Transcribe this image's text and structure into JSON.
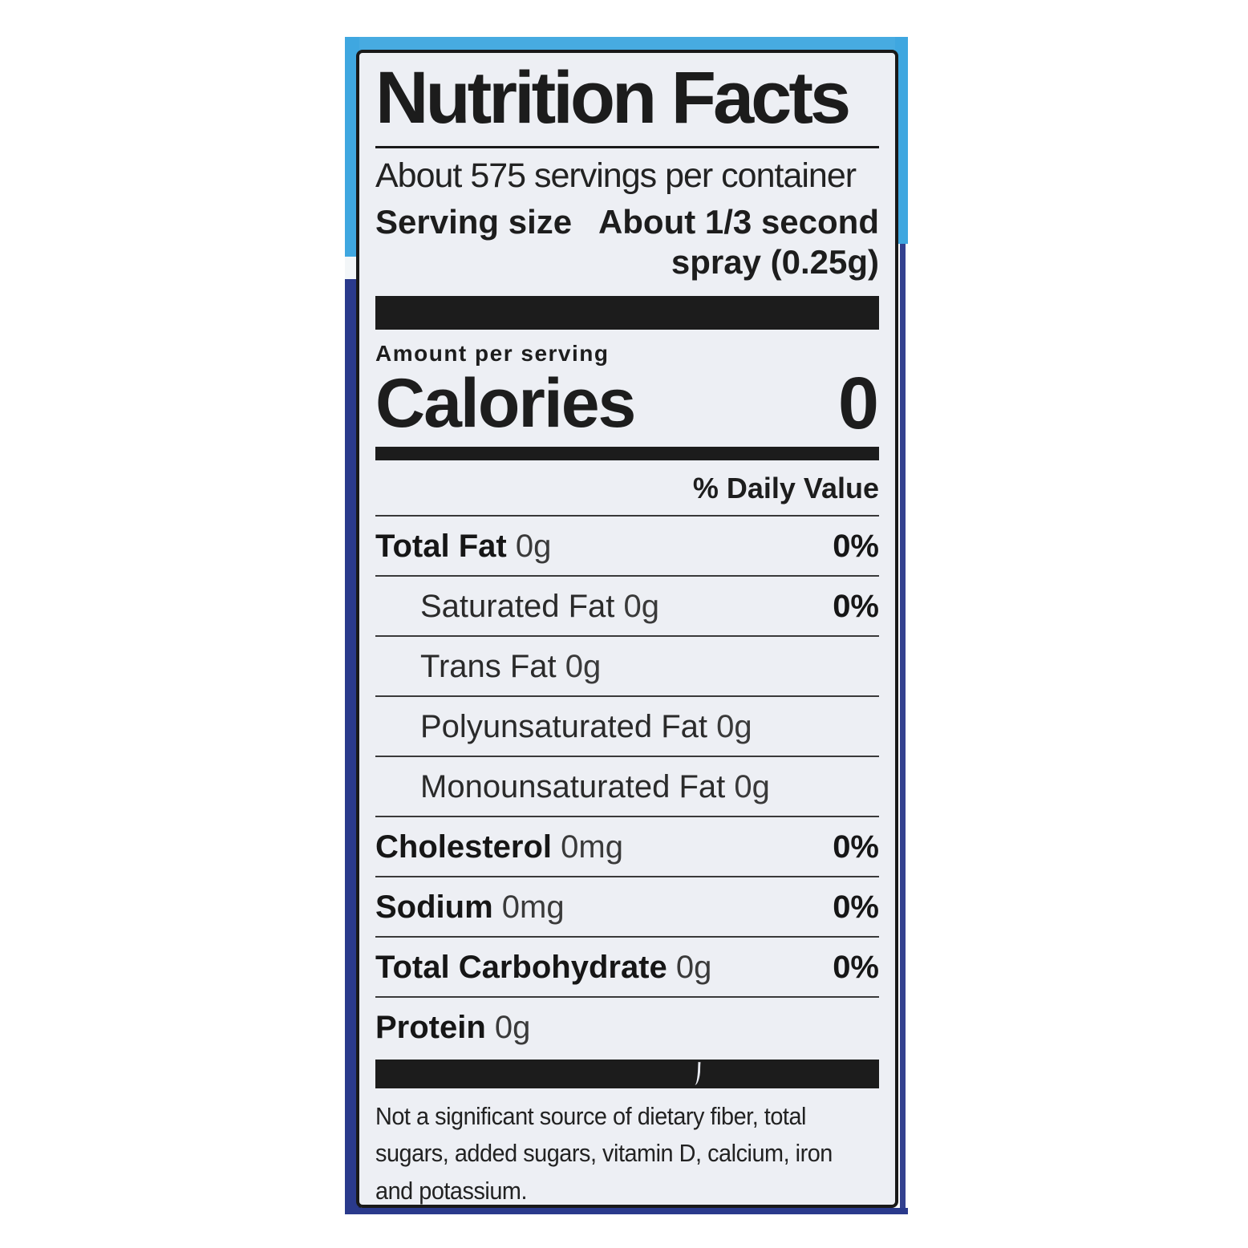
{
  "label": {
    "title": "Nutrition Facts",
    "servings_per_container": "About 575 servings per container",
    "serving_size_label": "Serving size",
    "serving_size_value_line1": "About 1/3 second",
    "serving_size_value_line2": "spray (0.25g)",
    "amount_per_serving": "Amount per serving",
    "calories_label": "Calories",
    "calories_value": "0",
    "daily_value_header": "% Daily Value",
    "rows": [
      {
        "name": "Total Fat",
        "amount": "0g",
        "dv": "0%"
      },
      {
        "name": "Saturated Fat",
        "amount": "0g",
        "dv": "0%"
      },
      {
        "name": "Trans Fat",
        "amount": "0g",
        "dv": ""
      },
      {
        "name": "Polyunsaturated Fat",
        "amount": "0g",
        "dv": ""
      },
      {
        "name": "Monounsaturated Fat",
        "amount": "0g",
        "dv": ""
      },
      {
        "name": "Cholesterol",
        "amount": "0mg",
        "dv": "0%"
      },
      {
        "name": "Sodium",
        "amount": "0mg",
        "dv": "0%"
      },
      {
        "name": "Total Carbohydrate",
        "amount": "0g",
        "dv": "0%"
      },
      {
        "name": "Protein",
        "amount": "0g",
        "dv": ""
      }
    ],
    "footnote_lines": [
      "Not a significant source of dietary fiber, total",
      "sugars, added sugars, vitamin D, calcium, iron",
      "and potassium."
    ],
    "colors": {
      "page_bg": "#ffffff",
      "label_bg": "#edeff4",
      "ink": "#1c1c1c",
      "light_blue_band": "#3fa7e0",
      "navy_band": "#2a3a8c"
    }
  }
}
